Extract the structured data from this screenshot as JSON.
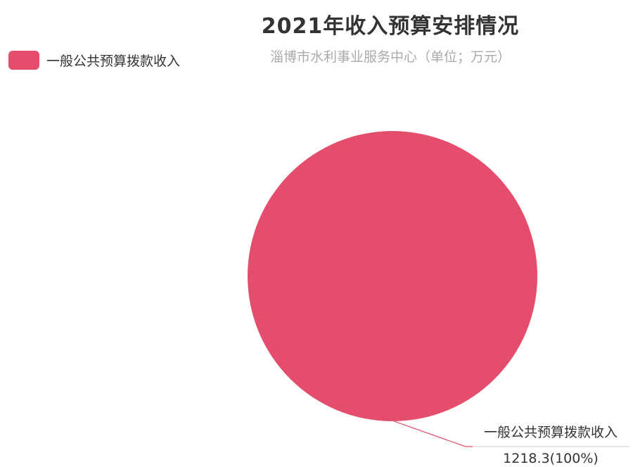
{
  "chart_data": {
    "type": "pie",
    "title": "2021年收入预算安排情况",
    "subtitle": "淄博市水利事业服务中心（单位；万元）",
    "legend_position": "top-left",
    "slices": [
      {
        "name": "一般公共预算拨款收入",
        "value": 1218.3,
        "percent": 100,
        "value_label": "1218.3(100%)",
        "color": "#e44d6b"
      }
    ]
  }
}
